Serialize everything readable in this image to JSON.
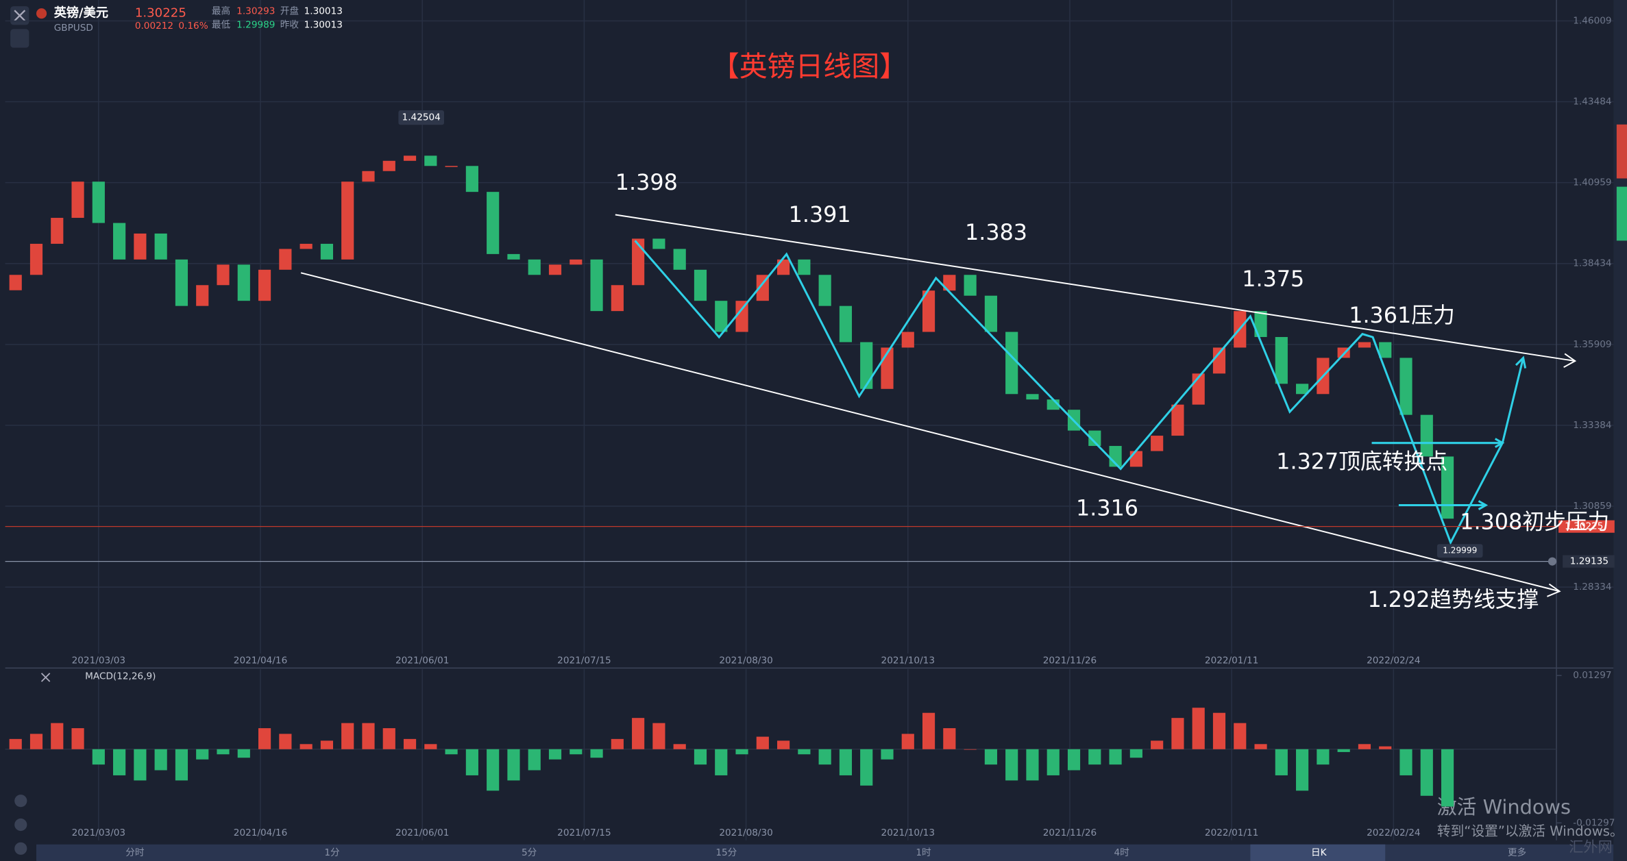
{
  "header": {
    "name": "英镑/美元",
    "symbol": "GBPUSD",
    "price": 1.30225,
    "change": 0.00212,
    "change_pct": "0.16%",
    "stats": [
      {
        "label": "最高",
        "value": 1.30293
      },
      {
        "label": "开盘",
        "value": 1.30013
      },
      {
        "label": "最低",
        "value": 1.29989
      },
      {
        "label": "昨收",
        "value": 1.30013
      }
    ]
  },
  "chart_data": {
    "type": "candlestick",
    "title": "【英镑日线图】",
    "up_color": "#e0463c",
    "down_color": "#2bb673",
    "grid": true,
    "ylim": [
      1.2626,
      1.4666
    ],
    "yticks": [
      1.46009,
      1.43484,
      1.40959,
      1.38434,
      1.35909,
      1.33384,
      1.30859,
      1.28334
    ],
    "xlim": [
      -0.75,
      74.25
    ],
    "xticks": [
      {
        "value": 4,
        "label": "2021/03/03"
      },
      {
        "value": 11.8,
        "label": "2021/04/16"
      },
      {
        "value": 19.6,
        "label": "2021/06/01"
      },
      {
        "value": 27.4,
        "label": "2021/07/15"
      },
      {
        "value": 35.2,
        "label": "2021/08/30"
      },
      {
        "value": 43,
        "label": "2021/10/13"
      },
      {
        "value": 50.8,
        "label": "2021/11/26"
      },
      {
        "value": 58.6,
        "label": "2022/01/11"
      },
      {
        "value": 66.4,
        "label": "2022/02/24"
      }
    ],
    "open": [
      1.376,
      1.3808,
      1.3905,
      1.3986,
      1.4099,
      1.397,
      1.3856,
      1.3937,
      1.3856,
      1.3711,
      1.3776,
      1.384,
      1.3727,
      1.3824,
      1.3889,
      1.3905,
      1.3856,
      1.4099,
      1.4132,
      1.4164,
      1.418,
      1.4148,
      1.4148,
      1.4067,
      1.3873,
      1.3856,
      1.3808,
      1.384,
      1.3856,
      1.3695,
      1.3776,
      1.3921,
      1.3889,
      1.3824,
      1.3727,
      1.363,
      1.3727,
      1.3808,
      1.3856,
      1.3808,
      1.3711,
      1.3598,
      1.3452,
      1.3581,
      1.363,
      1.3759,
      1.3808,
      1.3743,
      1.363,
      1.3436,
      1.3419,
      1.3387,
      1.3322,
      1.3274,
      1.3209,
      1.3258,
      1.3306,
      1.3403,
      1.35,
      1.3581,
      1.3695,
      1.3614,
      1.3468,
      1.3436,
      1.3549,
      1.3581,
      1.3598,
      1.3549,
      1.3371,
      1.3241
    ],
    "close": [
      1.3808,
      1.3905,
      1.3986,
      1.4099,
      1.397,
      1.3856,
      1.3937,
      1.3856,
      1.3711,
      1.3776,
      1.384,
      1.3727,
      1.3824,
      1.3889,
      1.3905,
      1.3856,
      1.4099,
      1.4132,
      1.4164,
      1.418,
      1.4148,
      1.4148,
      1.4067,
      1.3873,
      1.3856,
      1.3808,
      1.384,
      1.3856,
      1.3695,
      1.3776,
      1.3921,
      1.3889,
      1.3824,
      1.3727,
      1.363,
      1.3727,
      1.3808,
      1.3856,
      1.3808,
      1.3711,
      1.3598,
      1.3452,
      1.3581,
      1.363,
      1.3759,
      1.3808,
      1.3743,
      1.363,
      1.3436,
      1.3419,
      1.3387,
      1.3322,
      1.3274,
      1.3209,
      1.3258,
      1.3306,
      1.3403,
      1.35,
      1.3581,
      1.3695,
      1.3614,
      1.3468,
      1.3436,
      1.3549,
      1.3581,
      1.3598,
      1.3549,
      1.3371,
      1.3241,
      1.3047
    ],
    "markers": {
      "high": 1.42504,
      "low": 1.29999,
      "last": 1.30225,
      "alert": 1.29135
    },
    "annotations": [
      "1.398",
      "1.391",
      "1.383",
      "1.375",
      "1.361压力",
      "1.327顶底转换点",
      "1.316",
      "1.308初步压力",
      "1.292趋势线支撑"
    ],
    "macd": {
      "label": "MACD(12,26,9)",
      "ylim": [
        -0.0142,
        0.0141
      ],
      "yticks": [
        0.01297,
        -0.01297
      ],
      "values": [
        0.0018,
        0.0027,
        0.0046,
        0.0037,
        -0.0027,
        -0.0046,
        -0.0055,
        -0.0037,
        -0.0055,
        -0.0018,
        -0.0009,
        -0.0015,
        0.0037,
        0.0027,
        0.0009,
        0.0015,
        0.0046,
        0.0046,
        0.0037,
        0.0018,
        0.0009,
        -0.0009,
        -0.0046,
        -0.0073,
        -0.0055,
        -0.0037,
        -0.0018,
        -0.0009,
        -0.0015,
        0.0018,
        0.0055,
        0.0046,
        0.0009,
        -0.0027,
        -0.0046,
        -0.0009,
        0.0022,
        0.0015,
        -0.0009,
        -0.0027,
        -0.0046,
        -0.0064,
        -0.0018,
        0.0027,
        0.0064,
        0.0037,
        0,
        -0.0027,
        -0.0055,
        -0.0055,
        -0.0046,
        -0.0037,
        -0.0027,
        -0.0027,
        -0.0015,
        0.0015,
        0.0055,
        0.0073,
        0.0064,
        0.0046,
        0.0009,
        -0.0046,
        -0.0073,
        -0.0027,
        -0.0005,
        0.0009,
        0.0005,
        -0.0046,
        -0.0082,
        -0.0101
      ]
    }
  },
  "tabs": [
    "分时",
    "1分",
    "5分",
    "15分",
    "1时",
    "4时",
    "日K",
    "更多"
  ],
  "watermark": [
    "激活 Windows",
    "转到“设置”以激活 Windows。",
    "汇外网"
  ]
}
